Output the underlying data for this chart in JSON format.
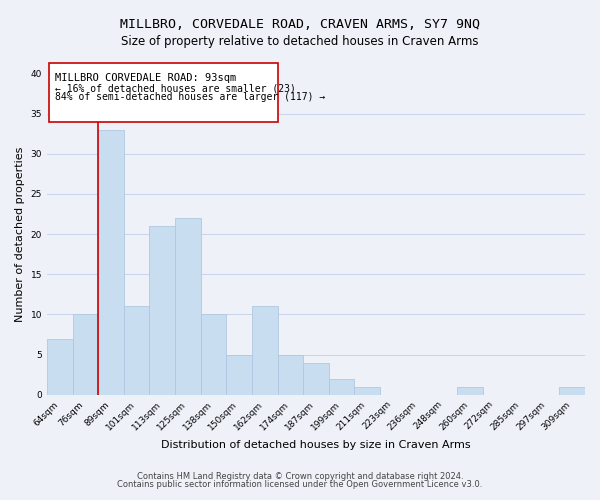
{
  "title": "MILLBRO, CORVEDALE ROAD, CRAVEN ARMS, SY7 9NQ",
  "subtitle": "Size of property relative to detached houses in Craven Arms",
  "xlabel": "Distribution of detached houses by size in Craven Arms",
  "ylabel": "Number of detached properties",
  "bar_color": "#c8ddf0",
  "bar_edge_color": "#afc8e0",
  "categories": [
    "64sqm",
    "76sqm",
    "89sqm",
    "101sqm",
    "113sqm",
    "125sqm",
    "138sqm",
    "150sqm",
    "162sqm",
    "174sqm",
    "187sqm",
    "199sqm",
    "211sqm",
    "223sqm",
    "236sqm",
    "248sqm",
    "260sqm",
    "272sqm",
    "285sqm",
    "297sqm",
    "309sqm"
  ],
  "values": [
    7,
    10,
    33,
    11,
    21,
    22,
    10,
    5,
    11,
    5,
    4,
    2,
    1,
    0,
    0,
    0,
    1,
    0,
    0,
    0,
    1
  ],
  "ylim": [
    0,
    40
  ],
  "yticks": [
    0,
    5,
    10,
    15,
    20,
    25,
    30,
    35,
    40
  ],
  "annotation_title": "MILLBRO CORVEDALE ROAD: 93sqm",
  "annotation_line1": "← 16% of detached houses are smaller (23)",
  "annotation_line2": "84% of semi-detached houses are larger (117) →",
  "annotation_box_color": "#ffffff",
  "annotation_border_color": "#cc0000",
  "property_line_color": "#cc0000",
  "grid_color": "#c8d4e8",
  "background_color": "#eef2f8",
  "footer_line1": "Contains HM Land Registry data © Crown copyright and database right 2024.",
  "footer_line2": "Contains public sector information licensed under the Open Government Licence v3.0.",
  "title_fontsize": 9.5,
  "subtitle_fontsize": 8.5,
  "xlabel_fontsize": 8,
  "ylabel_fontsize": 8,
  "tick_fontsize": 6.5,
  "annotation_title_fontsize": 7.5,
  "annotation_text_fontsize": 7,
  "footer_fontsize": 6
}
